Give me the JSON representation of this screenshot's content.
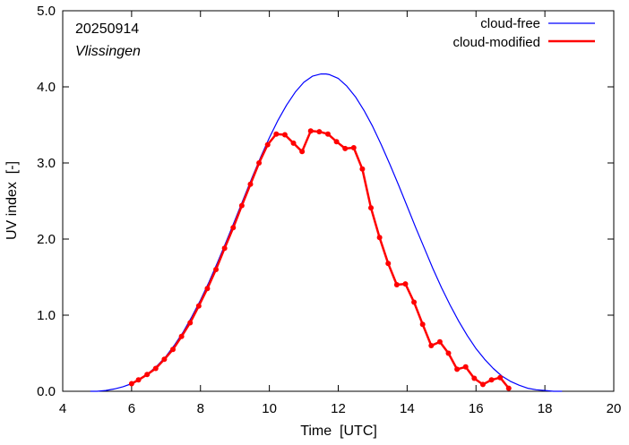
{
  "chart_data": {
    "type": "line",
    "xlabel": "Time  [UTC]",
    "ylabel": "UV index  [-]",
    "xlim": [
      4,
      20
    ],
    "ylim": [
      0,
      5
    ],
    "x_ticks": [
      "4",
      "6",
      "8",
      "10",
      "12",
      "14",
      "16",
      "18",
      "20"
    ],
    "y_ticks": [
      "0.0",
      "1.0",
      "2.0",
      "3.0",
      "4.0",
      "5.0"
    ],
    "annotations": {
      "date": "20250914",
      "location": "Vlissingen"
    },
    "legend_position": "top-right",
    "series": [
      {
        "name": "cloud-free",
        "color": "#0000ff",
        "style": "line",
        "x": [
          4.8,
          5.0,
          5.25,
          5.5,
          5.75,
          6.0,
          6.25,
          6.5,
          6.75,
          7.0,
          7.25,
          7.5,
          7.75,
          8.0,
          8.25,
          8.5,
          8.75,
          9.0,
          9.25,
          9.5,
          9.75,
          10.0,
          10.25,
          10.5,
          10.75,
          11.0,
          11.25,
          11.5,
          11.65,
          11.75,
          12.0,
          12.25,
          12.5,
          12.75,
          13.0,
          13.25,
          13.5,
          13.75,
          14.0,
          14.25,
          14.5,
          14.75,
          15.0,
          15.25,
          15.5,
          15.75,
          16.0,
          16.25,
          16.5,
          16.75,
          17.0,
          17.25,
          17.5,
          17.75,
          18.0,
          18.25,
          18.5
        ],
        "y": [
          0.0,
          0.0,
          0.01,
          0.03,
          0.06,
          0.1,
          0.16,
          0.24,
          0.34,
          0.46,
          0.61,
          0.78,
          0.98,
          1.2,
          1.44,
          1.7,
          1.97,
          2.25,
          2.53,
          2.81,
          3.08,
          3.33,
          3.56,
          3.76,
          3.93,
          4.06,
          4.14,
          4.17,
          4.17,
          4.16,
          4.11,
          4.01,
          3.87,
          3.69,
          3.48,
          3.24,
          2.98,
          2.71,
          2.43,
          2.15,
          1.88,
          1.61,
          1.36,
          1.13,
          0.92,
          0.73,
          0.56,
          0.42,
          0.3,
          0.2,
          0.13,
          0.08,
          0.04,
          0.02,
          0.01,
          0.0,
          0.0
        ]
      },
      {
        "name": "cloud-modified",
        "color": "#ff0000",
        "style": "line+points",
        "x": [
          6.0,
          6.2,
          6.45,
          6.7,
          6.95,
          7.2,
          7.45,
          7.7,
          7.95,
          8.2,
          8.45,
          8.7,
          8.95,
          9.2,
          9.45,
          9.7,
          9.95,
          10.2,
          10.45,
          10.7,
          10.95,
          11.2,
          11.45,
          11.7,
          11.95,
          12.2,
          12.45,
          12.7,
          12.95,
          13.2,
          13.45,
          13.7,
          13.95,
          14.2,
          14.45,
          14.7,
          14.95,
          15.2,
          15.45,
          15.7,
          15.95,
          16.2,
          16.45,
          16.7,
          16.95
        ],
        "y": [
          0.1,
          0.15,
          0.22,
          0.3,
          0.42,
          0.55,
          0.72,
          0.9,
          1.12,
          1.35,
          1.6,
          1.88,
          2.15,
          2.44,
          2.72,
          3.0,
          3.24,
          3.38,
          3.37,
          3.26,
          3.15,
          3.42,
          3.41,
          3.38,
          3.28,
          3.19,
          3.2,
          2.92,
          2.41,
          2.02,
          1.68,
          1.4,
          1.41,
          1.17,
          0.88,
          0.6,
          0.65,
          0.5,
          0.29,
          0.32,
          0.17,
          0.09,
          0.15,
          0.18,
          0.04
        ]
      }
    ]
  }
}
